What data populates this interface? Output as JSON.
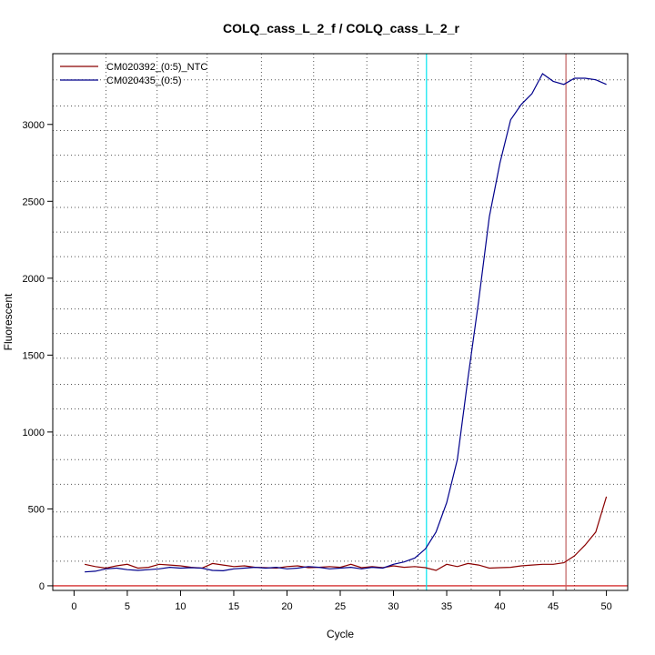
{
  "chart_data": {
    "type": "line",
    "title": "COLQ_cass_L_2_f / COLQ_cass_L_2_r",
    "xlabel": "Cycle",
    "ylabel": "Fluorescent",
    "xlim": [
      -2,
      52
    ],
    "ylim": [
      -30,
      3460
    ],
    "x_ticks": [
      0,
      5,
      10,
      15,
      20,
      25,
      30,
      35,
      40,
      45,
      50
    ],
    "y_ticks": [
      0,
      500,
      1000,
      1500,
      2000,
      2500,
      3000
    ],
    "grid": true,
    "grid_x_positions": [
      3,
      7.8,
      12.5,
      17.6,
      22.5,
      27.5,
      32.3,
      37.3,
      42.2,
      47
    ],
    "grid_y_values": [
      160,
      320,
      480,
      660,
      820,
      980,
      1150,
      1310,
      1480,
      1640,
      1800,
      1980,
      2140,
      2300,
      2460,
      2630,
      2800,
      2960,
      3120,
      3290
    ],
    "legend_position": "top-left",
    "threshold_line": {
      "y": 0,
      "color": "#cc0000"
    },
    "vertical_markers": [
      {
        "x": 33.1,
        "color": "#00e5ee"
      },
      {
        "x": 46.2,
        "color": "#c06060"
      }
    ],
    "x": [
      1,
      2,
      3,
      4,
      5,
      6,
      7,
      8,
      9,
      10,
      11,
      12,
      13,
      14,
      15,
      16,
      17,
      18,
      19,
      20,
      21,
      22,
      23,
      24,
      25,
      26,
      27,
      28,
      29,
      30,
      31,
      32,
      33,
      34,
      35,
      36,
      37,
      38,
      39,
      40,
      41,
      42,
      43,
      44,
      45,
      46,
      47,
      48,
      49,
      50
    ],
    "series": [
      {
        "name": "CM020392_(0:5)_NTC",
        "color": "#8b0000",
        "values": [
          140,
          125,
          115,
          130,
          140,
          115,
          120,
          140,
          135,
          130,
          120,
          115,
          145,
          135,
          125,
          130,
          120,
          118,
          115,
          125,
          130,
          118,
          120,
          125,
          120,
          140,
          118,
          125,
          118,
          130,
          120,
          125,
          118,
          100,
          140,
          125,
          145,
          135,
          115,
          118,
          120,
          130,
          135,
          140,
          140,
          150,
          195,
          265,
          350,
          580
        ]
      },
      {
        "name": "CM020435_(0:5)",
        "color": "#00008b",
        "values": [
          90,
          95,
          110,
          115,
          105,
          100,
          105,
          110,
          120,
          115,
          118,
          115,
          100,
          98,
          110,
          115,
          120,
          115,
          120,
          110,
          115,
          125,
          120,
          110,
          115,
          120,
          110,
          120,
          115,
          140,
          155,
          180,
          240,
          350,
          540,
          820,
          1350,
          1850,
          2400,
          2750,
          3030,
          3130,
          3200,
          3330,
          3280,
          3260,
          3300,
          3300,
          3290,
          3260
        ]
      }
    ]
  }
}
